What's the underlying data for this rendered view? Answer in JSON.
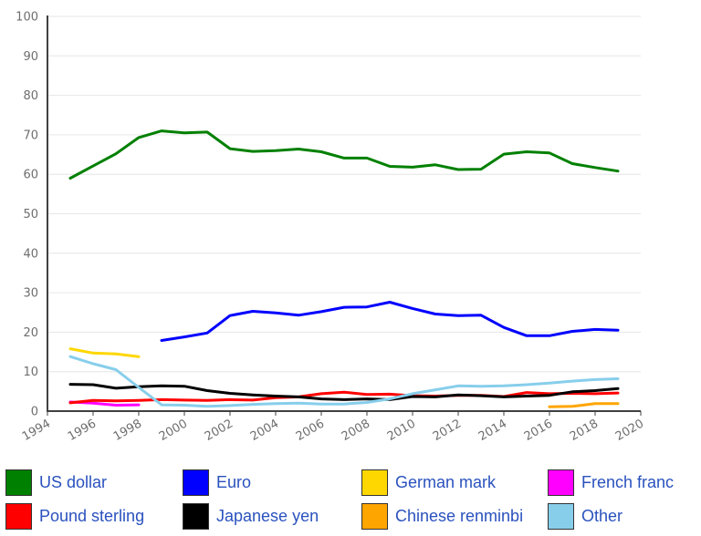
{
  "chart_data": {
    "type": "line",
    "title": "",
    "xlabel": "",
    "ylabel": "",
    "xlim": [
      1994,
      2020
    ],
    "ylim": [
      0,
      100
    ],
    "x_ticks": [
      "1994",
      "1996",
      "1998",
      "2000",
      "2002",
      "2004",
      "2006",
      "2008",
      "2010",
      "2012",
      "2014",
      "2016",
      "2018",
      "2020"
    ],
    "y_ticks": [
      "0",
      "10",
      "20",
      "30",
      "40",
      "50",
      "60",
      "70",
      "80",
      "90",
      "100"
    ],
    "grid": true,
    "legend_position": "bottom",
    "series": [
      {
        "name": "US dollar",
        "color": "#008000",
        "x": [
          1995,
          1996,
          1997,
          1998,
          1999,
          2000,
          2001,
          2002,
          2003,
          2004,
          2005,
          2006,
          2007,
          2008,
          2009,
          2010,
          2011,
          2012,
          2013,
          2014,
          2015,
          2016,
          2017,
          2018,
          2019
        ],
        "values": [
          59.0,
          62.1,
          65.2,
          69.3,
          71.0,
          70.5,
          70.7,
          66.5,
          65.8,
          66.0,
          66.4,
          65.7,
          64.1,
          64.1,
          62.0,
          61.8,
          62.4,
          61.2,
          61.3,
          65.1,
          65.7,
          65.4,
          62.7,
          61.7,
          60.8
        ]
      },
      {
        "name": "Euro",
        "color": "#0000ff",
        "x": [
          1999,
          2000,
          2001,
          2002,
          2003,
          2004,
          2005,
          2006,
          2007,
          2008,
          2009,
          2010,
          2011,
          2012,
          2013,
          2014,
          2015,
          2016,
          2017,
          2018,
          2019
        ],
        "values": [
          17.9,
          18.8,
          19.8,
          24.2,
          25.3,
          24.9,
          24.3,
          25.2,
          26.3,
          26.4,
          27.6,
          26.0,
          24.6,
          24.2,
          24.3,
          21.2,
          19.1,
          19.1,
          20.2,
          20.7,
          20.5
        ]
      },
      {
        "name": "German mark",
        "color": "#ffd700",
        "x": [
          1995,
          1996,
          1997,
          1998
        ],
        "values": [
          15.8,
          14.7,
          14.5,
          13.8
        ]
      },
      {
        "name": "French franc",
        "color": "#ff00ff",
        "x": [
          1995,
          1996,
          1997,
          1998
        ],
        "values": [
          2.3,
          2.0,
          1.5,
          1.6
        ]
      },
      {
        "name": "Pound sterling",
        "color": "#ff0000",
        "x": [
          1995,
          1996,
          1997,
          1998,
          1999,
          2000,
          2001,
          2002,
          2003,
          2004,
          2005,
          2006,
          2007,
          2008,
          2009,
          2010,
          2011,
          2012,
          2013,
          2014,
          2015,
          2016,
          2017,
          2018,
          2019
        ],
        "values": [
          2.1,
          2.7,
          2.6,
          2.7,
          2.9,
          2.8,
          2.7,
          2.9,
          2.8,
          3.4,
          3.6,
          4.4,
          4.8,
          4.2,
          4.3,
          3.9,
          3.8,
          4.0,
          4.0,
          3.7,
          4.7,
          4.4,
          4.5,
          4.4,
          4.6
        ]
      },
      {
        "name": "Japanese yen",
        "color": "#000000",
        "x": [
          1995,
          1996,
          1997,
          1998,
          1999,
          2000,
          2001,
          2002,
          2003,
          2004,
          2005,
          2006,
          2007,
          2008,
          2009,
          2010,
          2011,
          2012,
          2013,
          2014,
          2015,
          2016,
          2017,
          2018,
          2019
        ],
        "values": [
          6.8,
          6.7,
          5.8,
          6.2,
          6.4,
          6.3,
          5.2,
          4.5,
          4.1,
          3.8,
          3.6,
          3.1,
          2.9,
          3.1,
          2.9,
          3.7,
          3.6,
          4.1,
          3.9,
          3.6,
          3.8,
          4.0,
          4.9,
          5.2,
          5.7
        ]
      },
      {
        "name": "Chinese renminbi",
        "color": "#ffa500",
        "x": [
          2016,
          2017,
          2018,
          2019
        ],
        "values": [
          1.1,
          1.2,
          1.9,
          1.9
        ]
      },
      {
        "name": "Other",
        "color": "#87ceeb",
        "x": [
          1995,
          1996,
          1997,
          1998,
          1999,
          2000,
          2001,
          2002,
          2003,
          2004,
          2005,
          2006,
          2007,
          2008,
          2009,
          2010,
          2011,
          2012,
          2013,
          2014,
          2015,
          2016,
          2017,
          2018,
          2019
        ],
        "values": [
          13.8,
          12.0,
          10.5,
          6.0,
          1.6,
          1.5,
          1.2,
          1.4,
          1.7,
          1.9,
          2.0,
          1.8,
          1.8,
          2.2,
          3.1,
          4.4,
          5.4,
          6.4,
          6.3,
          6.4,
          6.7,
          7.1,
          7.6,
          8.0,
          8.2
        ]
      }
    ]
  },
  "legend": {
    "items": [
      {
        "label": "US dollar",
        "color": "#008000"
      },
      {
        "label": "Euro",
        "color": "#0000ff"
      },
      {
        "label": "German mark",
        "color": "#ffd700"
      },
      {
        "label": "French franc",
        "color": "#ff00ff"
      },
      {
        "label": "Pound sterling",
        "color": "#ff0000"
      },
      {
        "label": "Japanese yen",
        "color": "#000000"
      },
      {
        "label": "Chinese renminbi",
        "color": "#ffa500"
      },
      {
        "label": "Other",
        "color": "#87ceeb"
      }
    ]
  }
}
